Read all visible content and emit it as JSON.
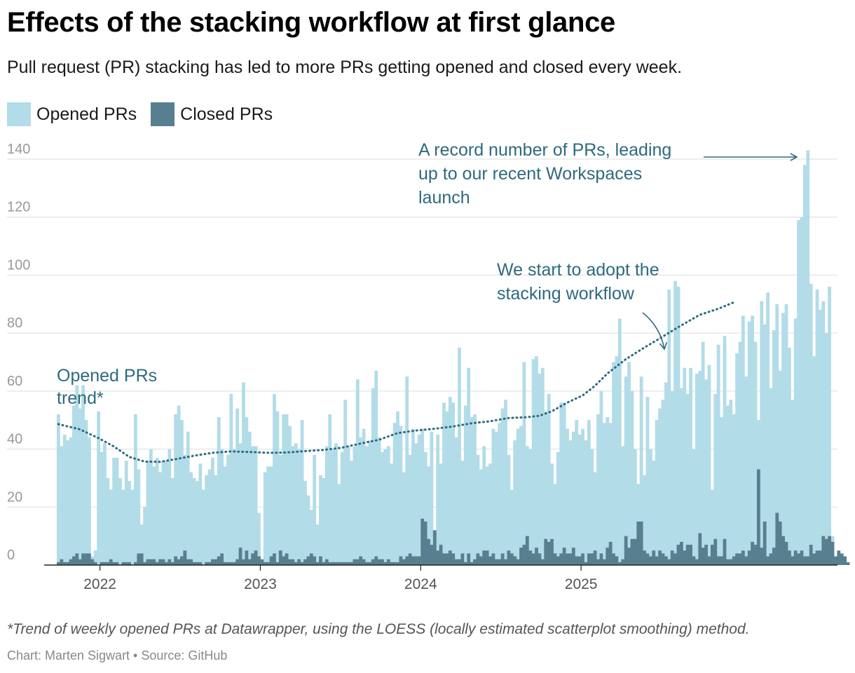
{
  "title": "Effects of the stacking workflow at first glance",
  "subtitle": "Pull request (PR) stacking has led to more PRs getting opened and closed every week.",
  "legend": [
    {
      "label": "Opened PRs",
      "color": "#b2dce8"
    },
    {
      "label": "Closed PRs",
      "color": "#587f8f"
    }
  ],
  "annotations": {
    "record": [
      "A record number of PRs, leading",
      "up to our recent Workspaces",
      "launch"
    ],
    "stacking": [
      "We start to adopt the",
      "stacking workflow"
    ],
    "trend": [
      "Opened PRs",
      "trend*"
    ]
  },
  "footnote": "*Trend of weekly opened PRs at Datawrapper, using the LOESS (locally estimated scatterplot smoothing) method.",
  "credit": "Chart: Marten Sigwart • Source: GitHub",
  "chart_data": {
    "type": "bar",
    "title": "Effects of the stacking workflow at first glance",
    "xlabel": "",
    "ylabel": "",
    "ylim": [
      0,
      145
    ],
    "yticks": [
      0,
      20,
      40,
      60,
      80,
      100,
      120,
      140
    ],
    "xticks": [
      {
        "label": "2022",
        "week": 14
      },
      {
        "label": "2023",
        "week": 66
      },
      {
        "label": "2024",
        "week": 118
      },
      {
        "label": "2025",
        "week": 170
      }
    ],
    "grid": true,
    "series": [
      {
        "name": "Opened PRs",
        "color": "#b2dce8",
        "values": [
          52,
          41,
          45,
          43,
          44,
          55,
          62,
          54,
          62,
          50,
          44,
          3,
          5,
          53,
          39,
          42,
          30,
          26,
          37,
          37,
          30,
          26,
          36,
          29,
          26,
          52,
          33,
          14,
          20,
          36,
          40,
          34,
          37,
          32,
          36,
          36,
          40,
          30,
          52,
          55,
          50,
          38,
          46,
          32,
          30,
          29,
          35,
          26,
          31,
          33,
          37,
          31,
          51,
          40,
          34,
          38,
          59,
          40,
          54,
          42,
          63,
          51,
          46,
          41,
          41,
          18,
          1,
          32,
          34,
          34,
          59,
          53,
          38,
          52,
          52,
          48,
          41,
          42,
          40,
          50,
          29,
          24,
          19,
          38,
          14,
          31,
          30,
          41,
          52,
          40,
          42,
          28,
          39,
          57,
          41,
          36,
          41,
          64,
          44,
          47,
          41,
          43,
          61,
          67,
          44,
          39,
          40,
          41,
          35,
          49,
          53,
          48,
          32,
          65,
          38,
          47,
          42,
          45,
          47,
          39,
          34,
          46,
          12,
          45,
          35,
          56,
          53,
          58,
          56,
          44,
          75,
          36,
          55,
          68,
          51,
          52,
          38,
          33,
          41,
          34,
          35,
          47,
          46,
          49,
          54,
          57,
          38,
          26,
          43,
          47,
          48,
          70,
          41,
          40,
          71,
          72,
          66,
          68,
          53,
          59,
          35,
          28,
          39,
          56,
          56,
          47,
          43,
          46,
          50,
          45,
          47,
          43,
          50,
          40,
          32,
          52,
          60,
          49,
          51,
          49,
          70,
          72,
          85,
          41,
          65,
          70,
          60,
          40,
          28,
          65,
          31,
          58,
          40,
          36,
          50,
          54,
          57,
          63,
          95,
          60,
          98,
          96,
          61,
          68,
          59,
          68,
          40,
          66,
          67,
          77,
          64,
          69,
          26,
          59,
          76,
          51,
          79,
          55,
          57,
          52,
          73,
          77,
          86,
          65,
          84,
          86,
          77,
          50,
          91,
          83,
          94,
          61,
          81,
          90,
          67,
          87,
          90,
          75,
          57,
          85,
          119,
          120,
          138,
          143,
          97,
          72,
          95,
          88,
          91,
          80,
          96,
          10
        ]
      },
      {
        "name": "Closed PRs",
        "color": "#587f8f",
        "values": [
          1,
          2,
          1,
          1,
          2,
          3,
          4,
          2,
          4,
          4,
          4,
          2,
          1,
          0,
          1,
          1,
          1,
          2,
          1,
          1,
          0,
          1,
          1,
          1,
          0,
          1,
          4,
          4,
          1,
          2,
          2,
          2,
          1,
          2,
          2,
          1,
          2,
          1,
          3,
          2,
          3,
          5,
          2,
          2,
          1,
          1,
          1,
          0,
          1,
          1,
          2,
          2,
          3,
          4,
          1,
          1,
          1,
          1,
          2,
          6,
          2,
          5,
          2,
          4,
          5,
          3,
          2,
          1,
          1,
          3,
          4,
          1,
          5,
          3,
          4,
          2,
          2,
          1,
          2,
          1,
          2,
          3,
          4,
          3,
          1,
          3,
          1,
          2,
          1,
          1,
          1,
          1,
          1,
          1,
          1,
          1,
          2,
          2,
          3,
          2,
          1,
          1,
          2,
          3,
          2,
          2,
          1,
          2,
          1,
          1,
          1,
          3,
          2,
          3,
          4,
          3,
          3,
          3,
          16,
          15,
          9,
          7,
          12,
          5,
          7,
          4,
          4,
          5,
          4,
          2,
          2,
          4,
          1,
          4,
          1,
          2,
          4,
          3,
          5,
          5,
          3,
          4,
          2,
          2,
          4,
          2,
          5,
          4,
          3,
          2,
          6,
          7,
          10,
          5,
          4,
          6,
          4,
          2,
          9,
          8,
          9,
          4,
          3,
          4,
          6,
          4,
          4,
          6,
          3,
          3,
          4,
          1,
          4,
          4,
          5,
          2,
          4,
          2,
          6,
          8,
          4,
          3,
          1,
          2,
          10,
          6,
          9,
          9,
          15,
          15,
          5,
          4,
          3,
          5,
          3,
          5,
          4,
          3,
          2,
          5,
          4,
          7,
          8,
          5,
          7,
          7,
          3,
          2,
          11,
          6,
          7,
          3,
          7,
          9,
          3,
          3,
          9,
          2,
          2,
          3,
          4,
          4,
          5,
          3,
          5,
          8,
          7,
          33,
          6,
          15,
          3,
          4,
          6,
          18,
          15,
          10,
          8,
          5,
          3,
          5,
          4,
          5,
          3,
          3,
          7,
          4,
          5,
          5,
          10,
          9,
          10,
          8,
          3,
          5,
          4,
          3,
          1
        ]
      },
      {
        "name": "Opened PRs trend*",
        "type": "line",
        "color": "#2e6a7d",
        "points": [
          {
            "week": 0,
            "value": 48.6
          },
          {
            "week": 7,
            "value": 46.8
          },
          {
            "week": 13,
            "value": 43.8
          },
          {
            "week": 18,
            "value": 40.9
          },
          {
            "week": 23,
            "value": 37.3
          },
          {
            "week": 28,
            "value": 35.7
          },
          {
            "week": 33,
            "value": 35.6
          },
          {
            "week": 38,
            "value": 36.5
          },
          {
            "week": 44,
            "value": 37.7
          },
          {
            "week": 50,
            "value": 38.7
          },
          {
            "week": 56,
            "value": 39.2
          },
          {
            "week": 62,
            "value": 39.0
          },
          {
            "week": 68,
            "value": 38.7
          },
          {
            "week": 74,
            "value": 38.8
          },
          {
            "week": 80,
            "value": 39.3
          },
          {
            "week": 86,
            "value": 39.7
          },
          {
            "week": 92,
            "value": 40.5
          },
          {
            "week": 98,
            "value": 41.9
          },
          {
            "week": 104,
            "value": 43.2
          },
          {
            "week": 110,
            "value": 45.5
          },
          {
            "week": 116,
            "value": 46.4
          },
          {
            "week": 122,
            "value": 47.0
          },
          {
            "week": 128,
            "value": 47.8
          },
          {
            "week": 134,
            "value": 48.9
          },
          {
            "week": 140,
            "value": 49.6
          },
          {
            "week": 146,
            "value": 50.7
          },
          {
            "week": 152,
            "value": 51.0
          },
          {
            "week": 156,
            "value": 51.5
          },
          {
            "week": 160,
            "value": 53.0
          },
          {
            "week": 165,
            "value": 56.0
          },
          {
            "week": 170,
            "value": 58.5
          },
          {
            "week": 174,
            "value": 61.8
          },
          {
            "week": 178,
            "value": 66.0
          },
          {
            "week": 184,
            "value": 71.0
          },
          {
            "week": 190,
            "value": 75.0
          },
          {
            "week": 196,
            "value": 78.8
          },
          {
            "week": 202,
            "value": 82.7
          },
          {
            "week": 208,
            "value": 86.3
          },
          {
            "week": 214,
            "value": 88.4
          },
          {
            "week": 219,
            "value": 90.6
          }
        ]
      }
    ]
  }
}
